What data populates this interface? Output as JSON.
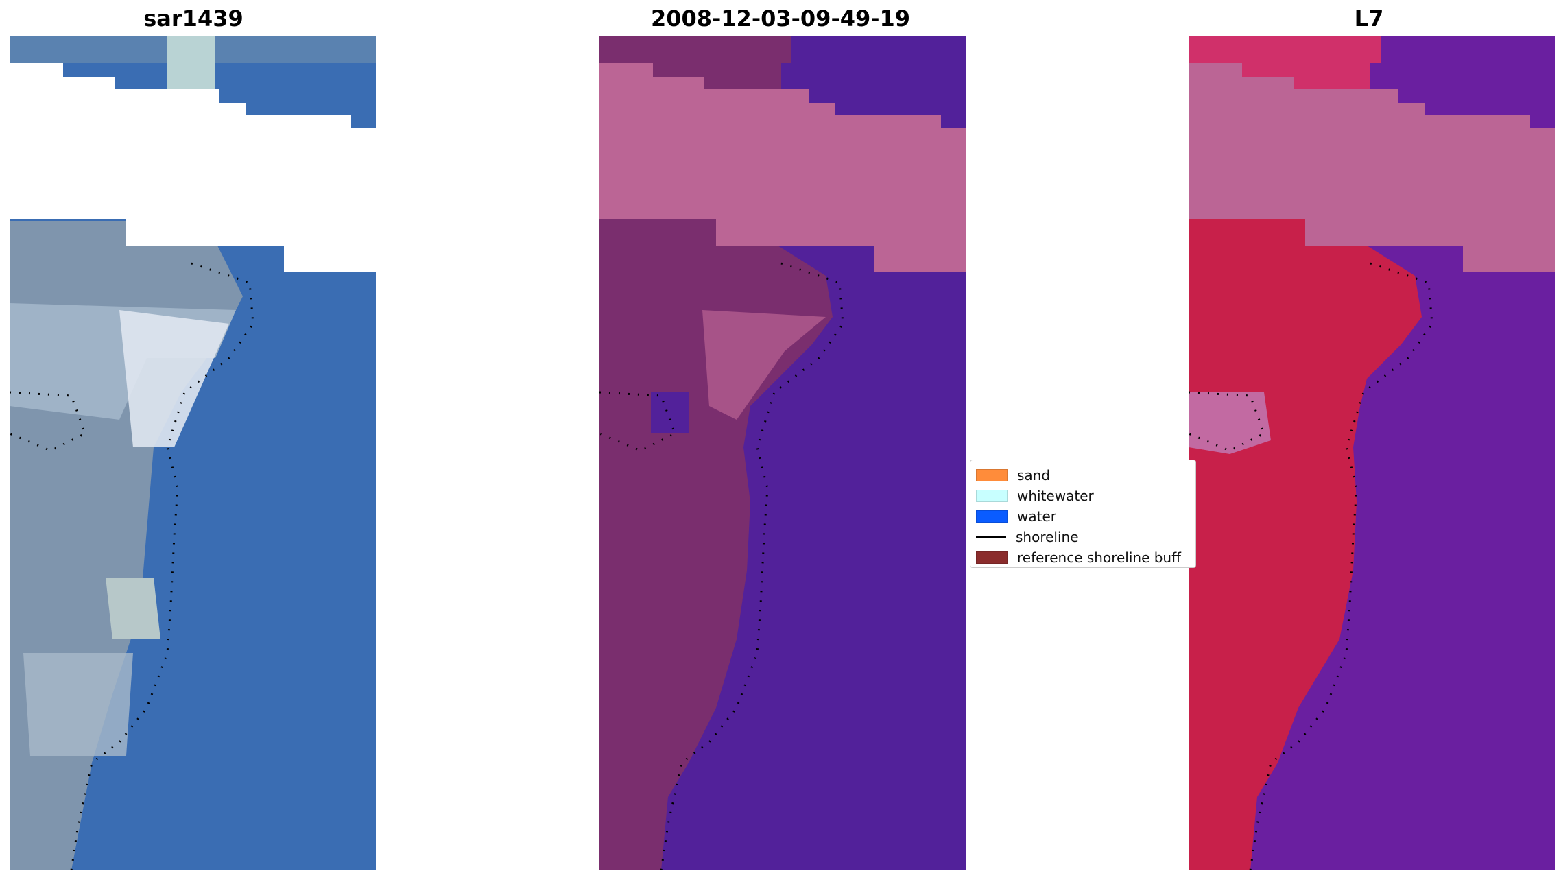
{
  "titles": {
    "left": "sar1439",
    "center": "2008-12-03-09-49-19",
    "right": "L7"
  },
  "legend": {
    "items": [
      {
        "label": "sand",
        "color": "#ff8c3a",
        "kind": "patch"
      },
      {
        "label": "whitewater",
        "color": "#c8ffff",
        "kind": "patch"
      },
      {
        "label": "water",
        "color": "#0a5cff",
        "kind": "patch"
      },
      {
        "label": "shoreline",
        "color": "#000000",
        "kind": "line"
      },
      {
        "label": "reference shoreline buff",
        "color": "#8b2c2c",
        "kind": "patch"
      }
    ]
  },
  "colors": {
    "rgb_water": "#3a6db3",
    "rgb_beach": "#8aa0b8",
    "class_water": "#52219a",
    "class_sand": "#7a2e6e",
    "class_nodata": "#bb6595",
    "ndwi_water": "#6a1fa0",
    "ndwi_land": "#c8204a",
    "ndwi_nodata": "#bb6595"
  }
}
